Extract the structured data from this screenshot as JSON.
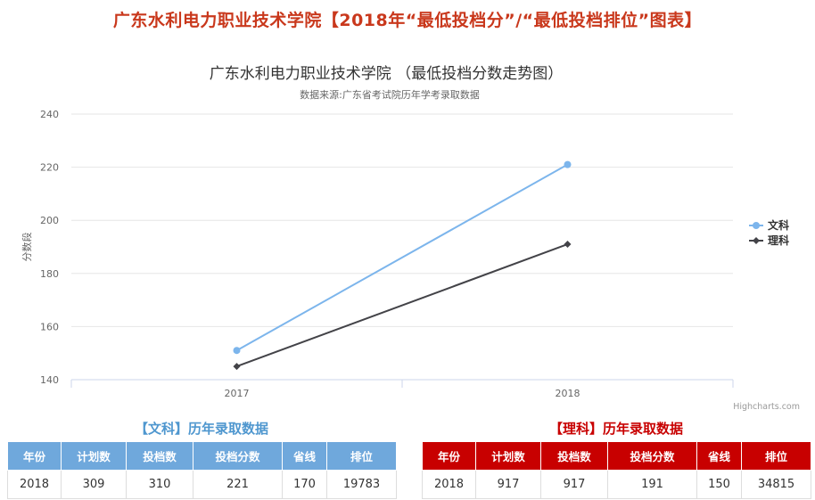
{
  "page": {
    "title": "广东水利电力职业技术学院【2018年“最低投档分”/“最低投档排位”图表】"
  },
  "chart_data": {
    "type": "line",
    "title": "广东水利电力职业技术学院  （最低投档分数走势图）",
    "subtitle": "数据来源:广东省考试院历年学考录取数据",
    "ylabel": "分数段",
    "xlabel": "",
    "categories": [
      "2017",
      "2018"
    ],
    "ylim": [
      140,
      240
    ],
    "yticks": [
      140,
      160,
      180,
      200,
      220,
      240
    ],
    "grid": true,
    "legend_position": "right",
    "series": [
      {
        "name": "文科",
        "values": [
          151,
          221
        ],
        "color": "#7cb5ec",
        "marker": "circle"
      },
      {
        "name": "理科",
        "values": [
          145,
          191
        ],
        "color": "#434348",
        "marker": "diamond"
      }
    ],
    "credit": "Highcharts.com"
  },
  "wen_table": {
    "title": "【文科】历年录取数据",
    "headers": [
      "年份",
      "计划数",
      "投档数",
      "投档分数",
      "省线",
      "排位"
    ],
    "rows": [
      [
        "2018",
        "309",
        "310",
        "221",
        "170",
        "19783"
      ]
    ]
  },
  "li_table": {
    "title": "【理科】历年录取数据",
    "headers": [
      "年份",
      "计划数",
      "投档数",
      "投档分数",
      "省线",
      "排位"
    ],
    "rows": [
      [
        "2018",
        "917",
        "917",
        "191",
        "150",
        "34815"
      ]
    ]
  }
}
